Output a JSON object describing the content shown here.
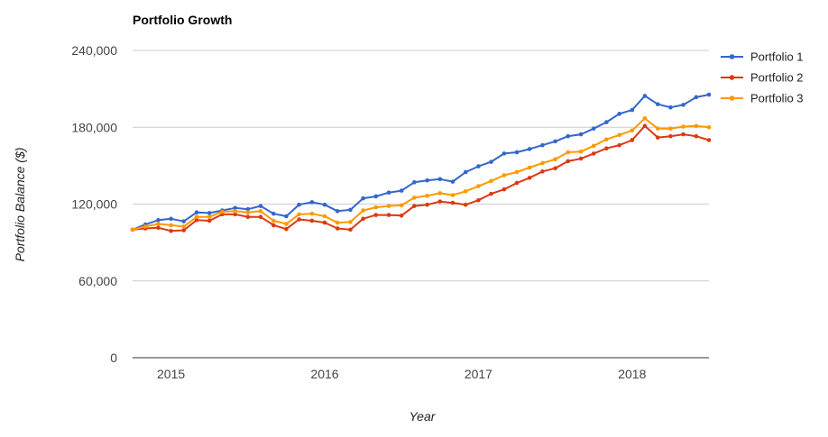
{
  "chart_data": {
    "type": "line",
    "title": "Portfolio Growth",
    "xlabel": "Year",
    "ylabel": "Portfolio Balance ($)",
    "ylim": [
      0,
      240000
    ],
    "y_ticks": [
      0,
      60000,
      120000,
      180000,
      240000
    ],
    "y_tick_labels": [
      "0",
      "60,000",
      "120,000",
      "180,000",
      "240,000"
    ],
    "x_range": [
      2014.75,
      2018.5
    ],
    "x_ticks": [
      2015,
      2016,
      2017,
      2018
    ],
    "x_tick_labels": [
      "2015",
      "2016",
      "2017",
      "2018"
    ],
    "grid": true,
    "legend_position": "right",
    "x": [
      2014.75,
      2014.833,
      2014.917,
      2015.0,
      2015.083,
      2015.167,
      2015.25,
      2015.333,
      2015.417,
      2015.5,
      2015.583,
      2015.667,
      2015.75,
      2015.833,
      2015.917,
      2016.0,
      2016.083,
      2016.167,
      2016.25,
      2016.333,
      2016.417,
      2016.5,
      2016.583,
      2016.667,
      2016.75,
      2016.833,
      2016.917,
      2017.0,
      2017.083,
      2017.167,
      2017.25,
      2017.333,
      2017.417,
      2017.5,
      2017.583,
      2017.667,
      2017.75,
      2017.833,
      2017.917,
      2018.0,
      2018.083,
      2018.167,
      2018.25,
      2018.333,
      2018.417,
      2018.5
    ],
    "series": [
      {
        "name": "Portfolio 1",
        "color": "#3366cc",
        "values": [
          100000,
          104000,
          107500,
          108500,
          106500,
          113500,
          113000,
          115000,
          117000,
          116000,
          118500,
          112500,
          110500,
          119500,
          121500,
          119500,
          114500,
          115500,
          124500,
          126000,
          129000,
          130500,
          137000,
          138500,
          139500,
          137500,
          145000,
          149500,
          153000,
          159500,
          160500,
          163000,
          166000,
          169000,
          173000,
          174500,
          179000,
          184000,
          190500,
          193500,
          204500,
          198000,
          195500,
          197500,
          203500,
          205500
        ]
      },
      {
        "name": "Portfolio 2",
        "color": "#dc3912",
        "values": [
          100000,
          101000,
          101500,
          99000,
          99500,
          107500,
          107000,
          112000,
          112000,
          110000,
          110000,
          103500,
          100500,
          108000,
          107000,
          105500,
          101000,
          100000,
          108500,
          111500,
          111500,
          111000,
          118500,
          119500,
          122000,
          121000,
          119500,
          123000,
          128000,
          131500,
          136500,
          140500,
          145500,
          148000,
          153500,
          155500,
          159500,
          163500,
          166000,
          170000,
          181000,
          172000,
          173000,
          174500,
          173000,
          170000
        ]
      },
      {
        "name": "Portfolio 3",
        "color": "#ff9900",
        "values": [
          100000,
          102500,
          104500,
          103500,
          102500,
          110000,
          110000,
          114000,
          114500,
          113500,
          114500,
          107000,
          104500,
          112000,
          112500,
          110500,
          105500,
          106000,
          115000,
          117500,
          118500,
          119000,
          125000,
          126500,
          128500,
          127000,
          130000,
          134000,
          138000,
          142500,
          145000,
          148500,
          152000,
          155000,
          160500,
          161000,
          165500,
          170500,
          174000,
          177500,
          187000,
          179000,
          179000,
          180500,
          181000,
          180000
        ]
      }
    ]
  }
}
